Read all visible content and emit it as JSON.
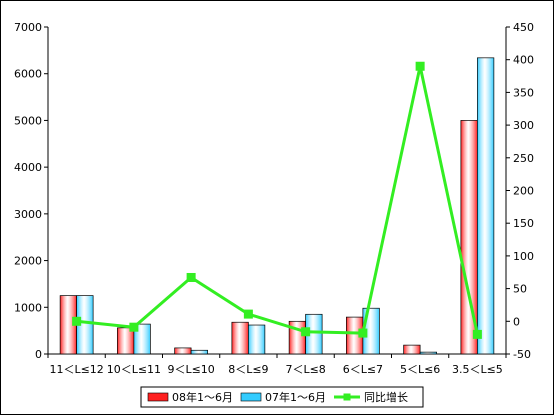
{
  "chart_data": {
    "type": "bar",
    "categories": [
      "11＜L≤12",
      "10＜L≤11",
      "9＜L≤10",
      "8＜L≤9",
      "7＜L≤8",
      "6＜L≤7",
      "5＜L≤6",
      "3.5＜L≤5"
    ],
    "series": [
      {
        "name": "08年1～6月",
        "type": "bar",
        "axis": "left",
        "color": "#ff2020",
        "values": [
          1250,
          560,
          130,
          680,
          700,
          790,
          190,
          5000
        ]
      },
      {
        "name": "07年1～6月",
        "type": "bar",
        "axis": "left",
        "color": "#33ccff",
        "values": [
          1250,
          640,
          80,
          620,
          850,
          980,
          40,
          6340
        ]
      },
      {
        "name": "同比增长",
        "type": "line",
        "axis": "right",
        "color": "#33ee22",
        "values": [
          0,
          -9,
          67,
          11,
          -16,
          -18,
          390,
          -20
        ]
      }
    ],
    "ylim": [
      0,
      7000
    ],
    "y_ticks": [
      "0",
      "1000",
      "2000",
      "3000",
      "4000",
      "5000",
      "6000",
      "7000"
    ],
    "y2lim": [
      -50,
      450
    ],
    "y2_ticks": [
      "-50",
      "0",
      "50",
      "100",
      "150",
      "200",
      "250",
      "300",
      "350",
      "400",
      "450"
    ],
    "legend_position": "bottom",
    "grid": false
  }
}
